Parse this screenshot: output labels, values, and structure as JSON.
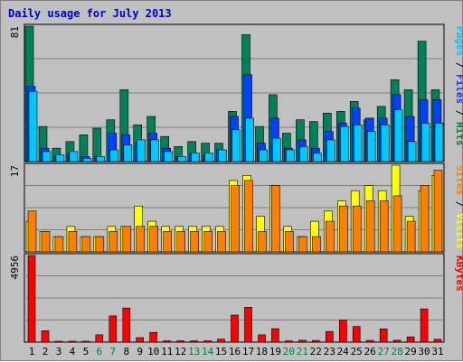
{
  "chart_data": {
    "type": "bar",
    "title": "Daily usage for July 2013",
    "days": [
      "1",
      "2",
      "3",
      "4",
      "5",
      "6",
      "7",
      "8",
      "9",
      "10",
      "11",
      "12",
      "13",
      "14",
      "15",
      "16",
      "17",
      "18",
      "19",
      "20",
      "21",
      "22",
      "23",
      "24",
      "25",
      "26",
      "27",
      "28",
      "29",
      "30",
      "31"
    ],
    "weekend_days": [
      "6",
      "7",
      "13",
      "14",
      "20",
      "21",
      "27",
      "28"
    ],
    "panels": [
      {
        "name": "hits-files-pages",
        "max_label": "81",
        "ymax": 81,
        "legend": [
          {
            "text": "Pages",
            "color": "#00c8ff"
          },
          {
            "text": " / ",
            "color": "#000000"
          },
          {
            "text": "Files",
            "color": "#0040ff"
          },
          {
            "text": " / ",
            "color": "#000000"
          },
          {
            "text": "Hits",
            "color": "#008040"
          }
        ],
        "series": [
          {
            "name": "Hits",
            "color": "#00805a",
            "values": [
              81,
              21,
              8,
              12,
              16,
              20,
              25,
              43,
              22,
              27,
              15,
              9,
              12,
              11,
              11,
              30,
              76,
              21,
              40,
              17,
              25,
              24,
              29,
              30,
              36,
              25,
              33,
              49,
              43,
              72,
              43
            ]
          },
          {
            "name": "Files",
            "color": "#0040ff",
            "values": [
              45,
              8,
              3,
              5,
              3,
              3,
              17,
              16,
              11,
              17,
              8,
              3,
              5,
              4,
              7,
              27,
              52,
              11,
              26,
              8,
              13,
              8,
              18,
              23,
              32,
              26,
              26,
              40,
              27,
              37,
              37
            ]
          },
          {
            "name": "Pages",
            "color": "#00c8ff",
            "values": [
              42,
              6,
              4,
              6,
              2,
              3,
              7,
              10,
              13,
              13,
              6,
              3,
              5,
              5,
              7,
              19,
              26,
              7,
              14,
              7,
              9,
              5,
              13,
              21,
              22,
              18,
              22,
              31,
              12,
              23,
              23
            ]
          }
        ]
      },
      {
        "name": "visits-sites",
        "max_label": "17",
        "ymax": 17,
        "legend": [
          {
            "text": "Sites",
            "color": "#ff8000"
          },
          {
            "text": " / ",
            "color": "#000000"
          },
          {
            "text": "Visits",
            "color": "#ffff00"
          }
        ],
        "series": [
          {
            "name": "Visits",
            "color": "#ffff00",
            "values": [
              6,
              4,
              3,
              5,
              3,
              3,
              5,
              5,
              9,
              6,
              5,
              5,
              5,
              5,
              5,
              14,
              15,
              7,
              13,
              5,
              3,
              6,
              8,
              10,
              12,
              13,
              12,
              17,
              7,
              12,
              15
            ]
          },
          {
            "name": "Sites",
            "color": "#ff8000",
            "values": [
              8,
              4,
              3,
              4,
              3,
              3,
              4,
              5,
              5,
              5,
              4,
              4,
              4,
              4,
              4,
              13,
              14,
              4,
              13,
              4,
              3,
              3,
              6,
              9,
              9,
              10,
              10,
              11,
              6,
              13,
              16
            ]
          }
        ]
      },
      {
        "name": "kbytes",
        "max_label": "4956",
        "ymax": 4956,
        "legend": [
          {
            "text": "KBytes",
            "color": "#ff0000"
          }
        ],
        "series": [
          {
            "name": "KBytes",
            "color": "#ff0000",
            "values": [
              4956,
              650,
              40,
              40,
              40,
              420,
              1500,
              1950,
              260,
              560,
              80,
              80,
              80,
              80,
              170,
              1550,
              2000,
              420,
              770,
              80,
              110,
              100,
              610,
              1270,
              900,
              100,
              760,
              110,
              300,
              1900,
              160
            ]
          }
        ]
      }
    ]
  }
}
